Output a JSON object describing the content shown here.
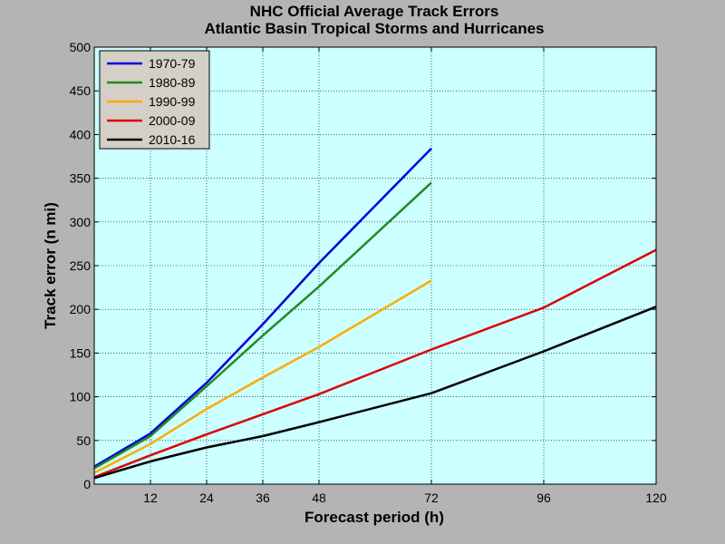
{
  "chart_data": {
    "type": "line",
    "title": "NHC Official Average Track Errors",
    "subtitle": "Atlantic Basin Tropical Storms and Hurricanes",
    "xlabel": "Forecast period (h)",
    "ylabel": "Track error (n mi)",
    "xlim": [
      0,
      120
    ],
    "ylim": [
      0,
      500
    ],
    "xticks": [
      12,
      24,
      36,
      48,
      72,
      96,
      120
    ],
    "yticks": [
      0,
      50,
      100,
      150,
      200,
      250,
      300,
      350,
      400,
      450,
      500
    ],
    "grid": true,
    "background": "#ccffff",
    "legend_position": "top-left",
    "series": [
      {
        "name": "1970-79",
        "color": "#0000dd",
        "x": [
          0,
          12,
          24,
          36,
          48,
          72
        ],
        "y": [
          20,
          58,
          116,
          183,
          253,
          384
        ]
      },
      {
        "name": "1980-89",
        "color": "#228b22",
        "x": [
          0,
          12,
          24,
          36,
          48,
          72
        ],
        "y": [
          18,
          55,
          112,
          170,
          226,
          345
        ]
      },
      {
        "name": "1990-99",
        "color": "#ffaa00",
        "x": [
          0,
          12,
          24,
          36,
          48,
          72
        ],
        "y": [
          13,
          46,
          86,
          122,
          157,
          233
        ]
      },
      {
        "name": "2000-09",
        "color": "#dd0000",
        "x": [
          0,
          12,
          24,
          36,
          48,
          72,
          96,
          120
        ],
        "y": [
          8,
          33,
          57,
          80,
          103,
          154,
          202,
          268
        ]
      },
      {
        "name": "2010-16",
        "color": "#000000",
        "x": [
          0,
          12,
          24,
          36,
          48,
          72,
          96,
          120
        ],
        "y": [
          7,
          26,
          42,
          55,
          71,
          104,
          152,
          203
        ]
      }
    ]
  }
}
